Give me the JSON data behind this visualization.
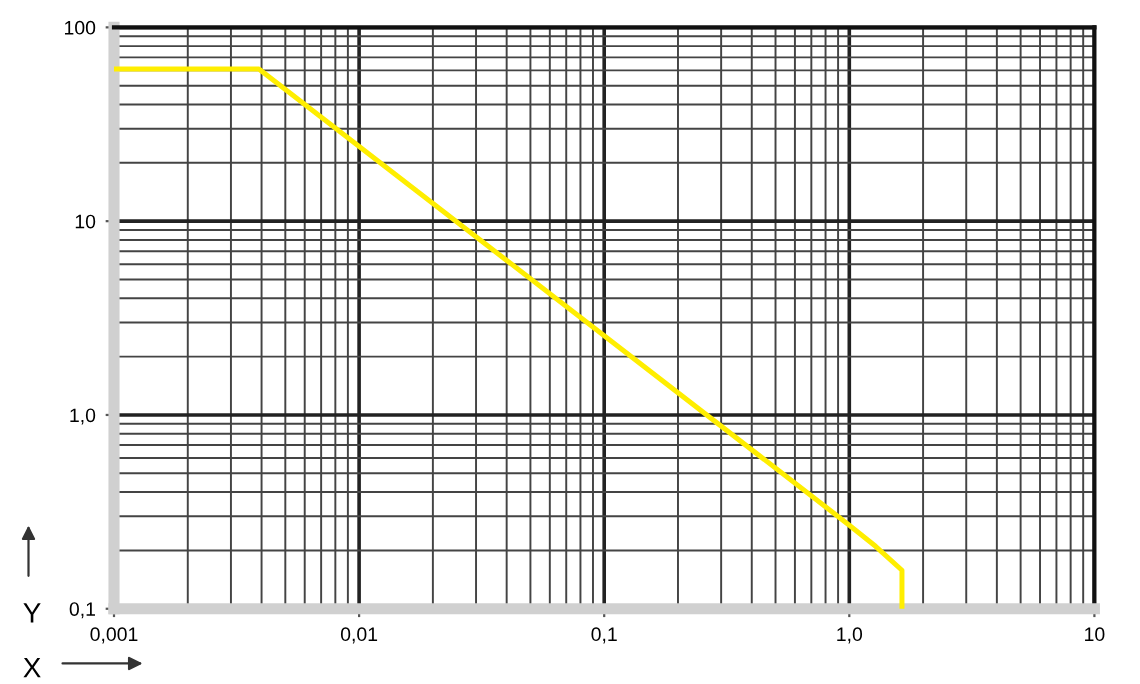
{
  "chart_data": {
    "type": "line",
    "xlabel": "X",
    "ylabel": "Y",
    "log": "xy",
    "grid": true,
    "marker": "none",
    "line_style": "solid",
    "x": [
      0.001,
      0.0039,
      1.0,
      1.28,
      1.64,
      1.64
    ],
    "series": [
      {
        "color": "#ffee00",
        "values": [
          61,
          61,
          0.27,
          0.21,
          0.158,
          0.1
        ]
      }
    ],
    "xlim": [
      0.001,
      10
    ],
    "ylim": [
      0.1,
      100
    ],
    "xticks": [
      {
        "value": 0.001,
        "label": "0,001"
      },
      {
        "value": 0.01,
        "label": "0,01"
      },
      {
        "value": 0.1,
        "label": "0,1"
      },
      {
        "value": 1,
        "label": "1,0"
      },
      10
    ],
    "yticks": [
      {
        "value": 0.1,
        "label": "0,1"
      },
      {
        "value": 1,
        "label": "1,0"
      },
      10,
      100
    ]
  }
}
